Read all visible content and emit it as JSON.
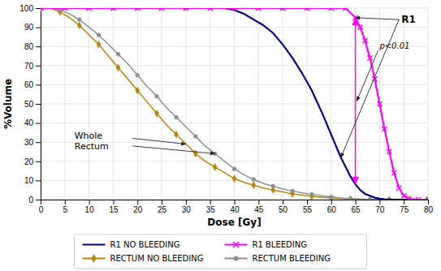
{
  "chart_data": {
    "type": "line",
    "xlabel": "Dose [Gy]",
    "ylabel": "%Volume",
    "xlim": [
      0,
      80
    ],
    "ylim": [
      0,
      100
    ],
    "xticks": [
      0,
      5,
      10,
      15,
      20,
      25,
      30,
      35,
      40,
      45,
      50,
      55,
      60,
      65,
      70,
      75,
      80
    ],
    "yticks": [
      0,
      10,
      20,
      30,
      40,
      50,
      60,
      70,
      80,
      90,
      100
    ],
    "grid": true,
    "legend": "bottom",
    "series": [
      {
        "name": "R1 NO BLEEDING",
        "color": "#00008B",
        "x": [
          0,
          2,
          4,
          6,
          8,
          10,
          12,
          14,
          16,
          18,
          20,
          22,
          24,
          26,
          28,
          30,
          32,
          34,
          36,
          38,
          40,
          42,
          44,
          46,
          48,
          50,
          52,
          54,
          56,
          58,
          60,
          62,
          64,
          65,
          66,
          67,
          68,
          69,
          70,
          71,
          72,
          73,
          74,
          75,
          76,
          78,
          80
        ],
        "values": [
          100,
          100,
          100,
          100,
          100,
          100,
          100,
          100,
          100,
          100,
          100,
          100,
          100,
          100,
          100,
          100,
          100,
          100,
          100,
          100,
          99,
          97,
          94,
          91,
          87,
          81,
          74,
          66,
          57,
          46,
          34,
          22,
          12,
          8,
          5,
          3,
          2,
          1,
          0.5,
          0.2,
          0.1,
          0,
          0,
          0,
          0,
          0,
          0
        ]
      },
      {
        "name": "R1 BLEEDING",
        "color": "#FF00FF",
        "marker": "x",
        "x": [
          0,
          5,
          10,
          15,
          20,
          25,
          30,
          35,
          40,
          45,
          50,
          55,
          60,
          63,
          65,
          66,
          67,
          68,
          69,
          70,
          71,
          72,
          73,
          74,
          75,
          76,
          78,
          80
        ],
        "values": [
          100,
          100,
          100,
          100,
          100,
          100,
          100,
          100,
          100,
          100,
          100,
          100,
          100,
          100,
          95,
          90,
          83,
          74,
          63,
          50,
          37,
          25,
          14,
          6,
          2,
          0.5,
          0,
          0
        ]
      },
      {
        "name": "RECTUM NO BLEEDING",
        "color": "#B8860B",
        "marker": "diamond",
        "x": [
          0,
          2,
          4,
          6,
          8,
          10,
          12,
          14,
          16,
          18,
          20,
          22,
          24,
          26,
          28,
          30,
          32,
          34,
          36,
          38,
          40,
          42,
          44,
          46,
          48,
          50,
          52,
          54,
          56,
          58,
          60,
          62,
          64,
          66,
          68,
          70,
          72,
          74,
          76,
          78,
          80
        ],
        "values": [
          100,
          100,
          98,
          95,
          91,
          86,
          81,
          75,
          69,
          63,
          57,
          51,
          45,
          39,
          34,
          29,
          24,
          20,
          17,
          14,
          11,
          9,
          7.5,
          6,
          5,
          4,
          3,
          2.3,
          1.7,
          1.2,
          0.8,
          0.5,
          0.3,
          0.1,
          0,
          0,
          0,
          0,
          0,
          0,
          0
        ]
      },
      {
        "name": "RECTUM BLEEDING",
        "color": "#909090",
        "marker": "circle",
        "x": [
          0,
          2,
          4,
          6,
          8,
          10,
          12,
          14,
          16,
          18,
          20,
          22,
          24,
          26,
          28,
          30,
          32,
          34,
          36,
          38,
          40,
          42,
          44,
          46,
          48,
          50,
          52,
          54,
          56,
          58,
          60,
          62,
          64,
          66,
          68,
          70,
          72,
          74,
          76,
          78,
          80
        ],
        "values": [
          100,
          100,
          99,
          97,
          94,
          90,
          86,
          81,
          76,
          71,
          65,
          59,
          54,
          48,
          43,
          38,
          33,
          28,
          24,
          20,
          16,
          13,
          10.5,
          8.5,
          7,
          5.5,
          4.5,
          3.5,
          2.7,
          2,
          1.4,
          0.9,
          0.5,
          0.3,
          0.1,
          0,
          0,
          0,
          0,
          0,
          0
        ]
      }
    ],
    "annotations": [
      {
        "text": "p<0.01"
      },
      {
        "text": "R1"
      },
      {
        "text": "Whole\nRectum"
      }
    ]
  }
}
